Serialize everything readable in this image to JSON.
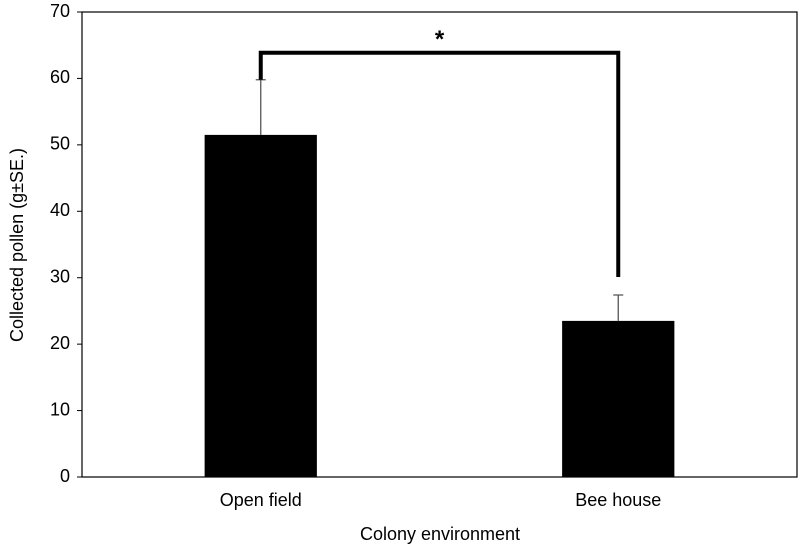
{
  "chart_data": {
    "type": "bar",
    "x_label": "Colony environment",
    "y_label": "Collected pollen (g±SE.)",
    "categories": [
      "Open field",
      "Bee house"
    ],
    "values": [
      51.5,
      23.5
    ],
    "errors": [
      8.3,
      3.9
    ],
    "color": "#000000",
    "ylim": [
      0,
      70
    ],
    "yticks": [
      0,
      10,
      20,
      30,
      40,
      50,
      60,
      70
    ],
    "grid": false,
    "annotation": "*"
  }
}
